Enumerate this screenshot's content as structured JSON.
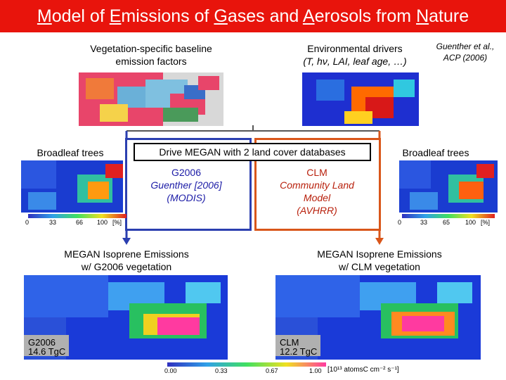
{
  "title": {
    "parts": [
      {
        "u": "M",
        "rest": "odel of "
      },
      {
        "u": "E",
        "rest": "missions of "
      },
      {
        "u": "G",
        "rest": "ases and "
      },
      {
        "u": "A",
        "rest": "erosols from "
      },
      {
        "u": "N",
        "rest": "ature"
      }
    ]
  },
  "citation": {
    "line1": "Guenther et al.,",
    "line2": "ACP (2006)"
  },
  "top_left": {
    "line1": "Vegetation-specific baseline",
    "line2": "emission factors"
  },
  "top_right": {
    "line1": "Environmental drivers",
    "line2": "(T, hν, LAI, leaf age, …)"
  },
  "center_box": {
    "label": "Drive MEGAN with 2 land cover databases"
  },
  "left_side_label": "Broadleaf trees",
  "right_side_label": "Broadleaf trees",
  "g2006": {
    "line1": "G2006",
    "line2": "Guenther [2006]",
    "line3": "(MODIS)"
  },
  "clm": {
    "line1": "CLM",
    "line2": "Community Land",
    "line3": "Model",
    "line4": "(AVHRR)"
  },
  "left_scale": {
    "ticks": [
      "0",
      "33",
      "66",
      "100"
    ],
    "unit": "[%]"
  },
  "right_scale": {
    "ticks": [
      "0",
      "33",
      "65",
      "100"
    ],
    "unit": "[%]"
  },
  "bottom_left_title": {
    "line1": "MEGAN Isoprene Emissions",
    "line2": "w/ G2006 vegetation"
  },
  "bottom_right_title": {
    "line1": "MEGAN Isoprene Emissions",
    "line2": "w/ CLM vegetation"
  },
  "bottom_left_map": {
    "label1": "G2006",
    "label2": "14.6 TgC"
  },
  "bottom_right_map": {
    "label1": "CLM",
    "label2": "12.2 TgC"
  },
  "bottom_scale": {
    "ticks": [
      "0.00",
      "0.33",
      "0.67",
      "1.00"
    ],
    "unit": "[10¹³ atomsC cm⁻² s⁻¹]"
  },
  "colors": {
    "title_bg": "#e8140c",
    "blue_outline": "#2b3fb0",
    "red_outline": "#d9561a"
  }
}
